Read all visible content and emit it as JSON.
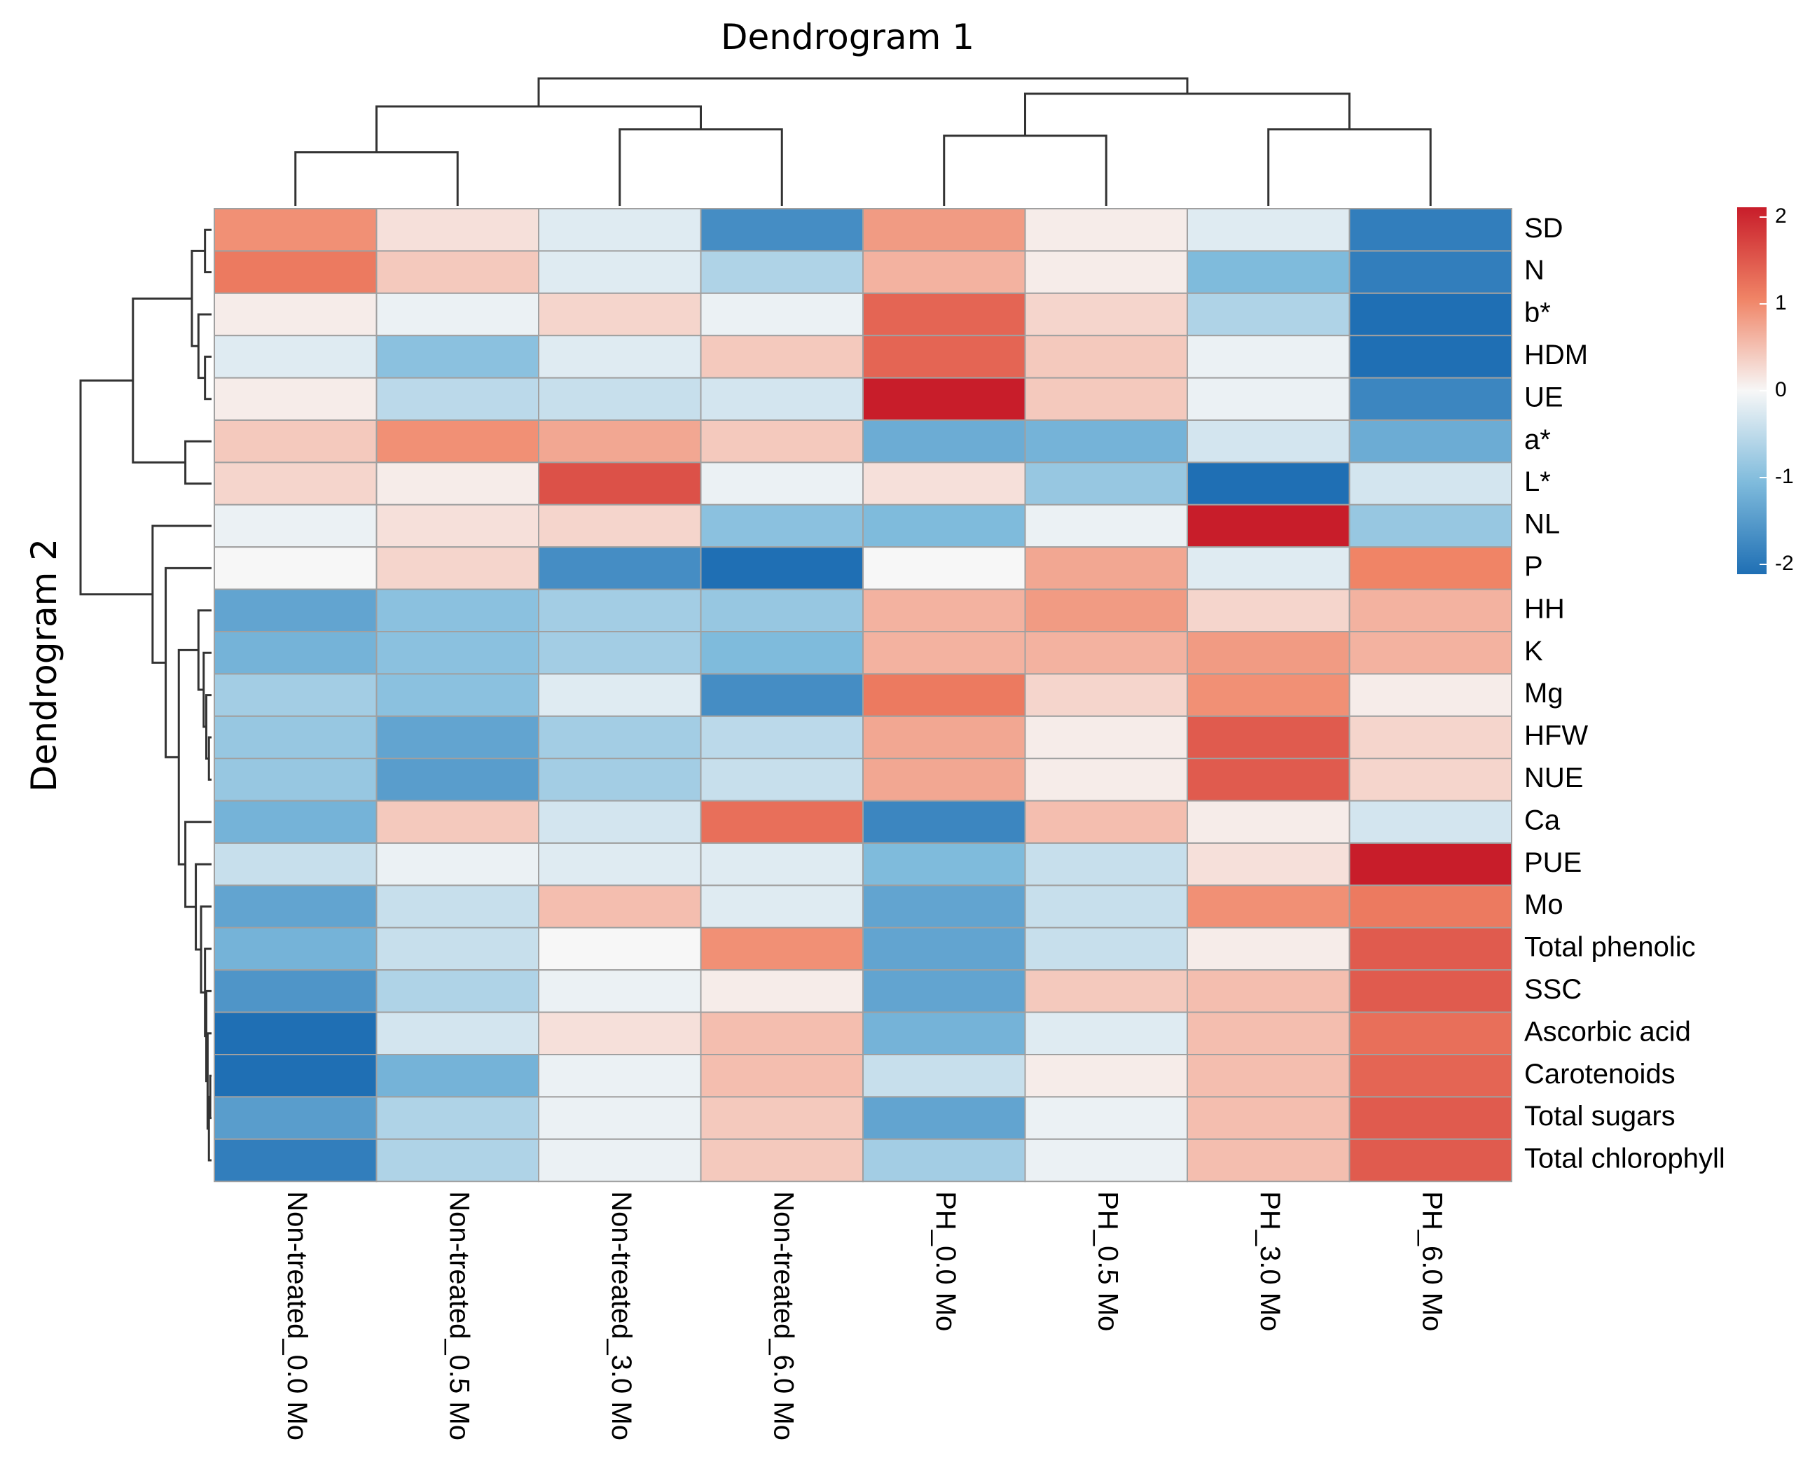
{
  "chart_data": {
    "type": "heatmap",
    "title_top": "Dendrogram 1",
    "title_left": "Dendrogram 2",
    "columns": [
      "Non-treated_0.0 Mo",
      "Non-treated_0.5 Mo",
      "Non-treated_3.0 Mo",
      "Non-treated_6.0 Mo",
      "PH_0.0 Mo",
      "PH_0.5 Mo",
      "PH_3.0 Mo",
      "PH_6.0 Mo"
    ],
    "rows": [
      "SD",
      "N",
      "b*",
      "HDM",
      "UE",
      "a*",
      "L*",
      "NL",
      "P",
      "HH",
      "K",
      "Mg",
      "HFW",
      "NUE",
      "Ca",
      "PUE",
      "Mo",
      "Total phenolic",
      "SSC",
      "Ascorbic acid",
      "Carotenoids",
      "Total sugars",
      "Total chlorophyll"
    ],
    "values": [
      [
        0.9,
        0.2,
        -0.2,
        -1.6,
        0.8,
        0.1,
        -0.2,
        -1.8
      ],
      [
        1.1,
        0.4,
        -0.2,
        -0.6,
        0.6,
        0.1,
        -1.0,
        -1.8
      ],
      [
        0.1,
        -0.1,
        0.3,
        -0.1,
        1.3,
        0.3,
        -0.6,
        -2.2
      ],
      [
        -0.2,
        -0.9,
        -0.2,
        0.4,
        1.3,
        0.4,
        -0.1,
        -2.0
      ],
      [
        0.1,
        -0.5,
        -0.4,
        -0.3,
        2.0,
        0.4,
        -0.1,
        -1.7
      ],
      [
        0.4,
        0.9,
        0.7,
        0.4,
        -1.2,
        -1.1,
        -0.3,
        -1.2
      ],
      [
        0.3,
        0.1,
        1.5,
        -0.1,
        0.2,
        -0.8,
        -2.0,
        -0.3
      ],
      [
        -0.1,
        0.2,
        0.3,
        -0.9,
        -1.0,
        -0.1,
        2.0,
        -0.8
      ],
      [
        0.0,
        0.3,
        -1.6,
        -2.0,
        0.0,
        0.7,
        -0.2,
        1.0
      ],
      [
        -1.3,
        -0.9,
        -0.7,
        -0.8,
        0.6,
        0.8,
        0.3,
        0.6
      ],
      [
        -1.1,
        -0.9,
        -0.7,
        -1.0,
        0.6,
        0.6,
        0.8,
        0.6
      ],
      [
        -0.7,
        -0.9,
        -0.2,
        -1.6,
        1.1,
        0.3,
        0.9,
        0.1
      ],
      [
        -0.8,
        -1.3,
        -0.7,
        -0.5,
        0.7,
        0.1,
        1.4,
        0.3
      ],
      [
        -0.8,
        -1.4,
        -0.7,
        -0.4,
        0.7,
        0.1,
        1.4,
        0.3
      ],
      [
        -1.1,
        0.4,
        -0.3,
        1.2,
        -1.7,
        0.5,
        0.1,
        -0.3
      ],
      [
        -0.4,
        -0.1,
        -0.2,
        -0.2,
        -1.0,
        -0.4,
        0.2,
        2.2
      ],
      [
        -1.3,
        -0.4,
        0.5,
        -0.2,
        -1.3,
        -0.4,
        0.9,
        1.1
      ],
      [
        -1.1,
        -0.4,
        0.0,
        0.9,
        -1.3,
        -0.4,
        0.1,
        1.4
      ],
      [
        -1.5,
        -0.6,
        -0.1,
        0.1,
        -1.3,
        0.4,
        0.5,
        1.4
      ],
      [
        -2.0,
        -0.3,
        0.2,
        0.5,
        -1.1,
        -0.2,
        0.5,
        1.2
      ],
      [
        -2.0,
        -1.1,
        -0.1,
        0.5,
        -0.4,
        0.1,
        0.5,
        1.3
      ],
      [
        -1.4,
        -0.6,
        -0.1,
        0.4,
        -1.3,
        -0.1,
        0.5,
        1.4
      ],
      [
        -1.8,
        -0.6,
        -0.1,
        0.4,
        -0.7,
        -0.1,
        0.5,
        1.4
      ]
    ],
    "color_scale": {
      "min": -2,
      "max": 2,
      "low": "#1f6fb4",
      "mid": "#f7f7f7",
      "high": "#c81d2a"
    },
    "legend_ticks": [
      "2",
      "1",
      "0",
      "-1",
      "-2"
    ],
    "col_dendrogram": [
      {
        "a": 0,
        "b": 1,
        "h": 0.42
      },
      {
        "a": 2,
        "b": 3,
        "h": 0.6
      },
      {
        "a": 4,
        "b": 5,
        "h": 0.55
      },
      {
        "a": 6,
        "b": 7,
        "h": 0.6
      },
      {
        "a": "c0",
        "b": "c1",
        "h": 0.78
      },
      {
        "a": "c2",
        "b": "c3",
        "h": 0.88
      },
      {
        "a": "c4",
        "b": "c5",
        "h": 1.0
      }
    ],
    "row_dendrogram": [
      {
        "a": 0,
        "b": 1,
        "h": 0.05
      },
      {
        "a": 3,
        "b": 4,
        "h": 0.05
      },
      {
        "a": 2,
        "b": "c1",
        "h": 0.1
      },
      {
        "a": "c0",
        "b": "c2",
        "h": 0.15
      },
      {
        "a": 5,
        "b": 6,
        "h": 0.2
      },
      {
        "a": "c3",
        "b": "c4",
        "h": 0.6
      },
      {
        "a": 12,
        "b": 13,
        "h": 0.02
      },
      {
        "a": 11,
        "b": "c6",
        "h": 0.04
      },
      {
        "a": 10,
        "b": "c7",
        "h": 0.06
      },
      {
        "a": 9,
        "b": "c8",
        "h": 0.1
      },
      {
        "a": 20,
        "b": 21,
        "h": 0.01
      },
      {
        "a": 22,
        "b": "c10",
        "h": 0.02
      },
      {
        "a": 19,
        "b": "c11",
        "h": 0.03
      },
      {
        "a": 18,
        "b": "c12",
        "h": 0.04
      },
      {
        "a": 17,
        "b": "c13",
        "h": 0.05
      },
      {
        "a": 16,
        "b": "c14",
        "h": 0.08
      },
      {
        "a": 15,
        "b": "c15",
        "h": 0.12
      },
      {
        "a": 14,
        "b": "c16",
        "h": 0.2
      },
      {
        "a": "c9",
        "b": "c17",
        "h": 0.25
      },
      {
        "a": 8,
        "b": "c18",
        "h": 0.35
      },
      {
        "a": 7,
        "b": "c19",
        "h": 0.45
      },
      {
        "a": "c5",
        "b": "c20",
        "h": 1.0
      }
    ]
  }
}
